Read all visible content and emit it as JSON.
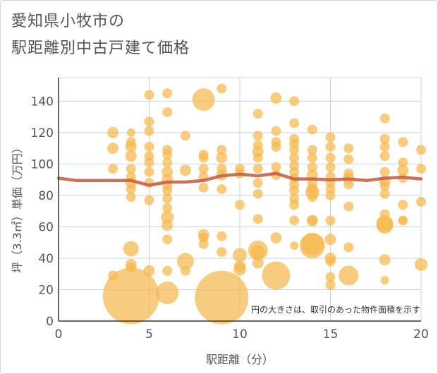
{
  "title_line1": "愛知県小牧市の",
  "title_line2": "駅距離別中古戸建て価格",
  "colors": {
    "bubble": "#f5b94e",
    "line": "#c8604a",
    "grid": "#c9d4e3",
    "text": "#555555"
  },
  "chart_data": {
    "type": "scatter",
    "xlabel": "駅距離（分）",
    "ylabel": "坪（3.3㎡）単価（万円）",
    "annotation": "円の大きさは、取引のあった物件面積を示す",
    "xlim": [
      0,
      20
    ],
    "ylim": [
      0,
      155
    ],
    "xticks": [
      0,
      5,
      10,
      15,
      20
    ],
    "yticks": [
      0,
      20,
      40,
      60,
      80,
      100,
      120,
      140
    ],
    "grid": true,
    "bubbles": [
      {
        "x": 3,
        "y": 120,
        "r": 8
      },
      {
        "x": 3,
        "y": 110,
        "r": 8
      },
      {
        "x": 3,
        "y": 97,
        "r": 7
      },
      {
        "x": 3,
        "y": 29,
        "r": 7
      },
      {
        "x": 4,
        "y": 120,
        "r": 6
      },
      {
        "x": 4,
        "y": 114,
        "r": 7
      },
      {
        "x": 4,
        "y": 111,
        "r": 8
      },
      {
        "x": 4,
        "y": 105,
        "r": 8
      },
      {
        "x": 4,
        "y": 97,
        "r": 7
      },
      {
        "x": 4,
        "y": 92,
        "r": 7
      },
      {
        "x": 4,
        "y": 88,
        "r": 8
      },
      {
        "x": 4,
        "y": 84,
        "r": 7
      },
      {
        "x": 4,
        "y": 79,
        "r": 7
      },
      {
        "x": 4,
        "y": 46,
        "r": 11
      },
      {
        "x": 4,
        "y": 36,
        "r": 8
      },
      {
        "x": 4,
        "y": 34,
        "r": 7
      },
      {
        "x": 4,
        "y": 16,
        "r": 40
      },
      {
        "x": 5,
        "y": 144,
        "r": 7
      },
      {
        "x": 5,
        "y": 127,
        "r": 7
      },
      {
        "x": 5,
        "y": 121,
        "r": 7
      },
      {
        "x": 5,
        "y": 111,
        "r": 7
      },
      {
        "x": 5,
        "y": 105,
        "r": 7
      },
      {
        "x": 5,
        "y": 101,
        "r": 7
      },
      {
        "x": 5,
        "y": 95,
        "r": 7
      },
      {
        "x": 5,
        "y": 88,
        "r": 7
      },
      {
        "x": 5,
        "y": 77,
        "r": 7
      },
      {
        "x": 5,
        "y": 32,
        "r": 8
      },
      {
        "x": 6,
        "y": 145,
        "r": 7
      },
      {
        "x": 6,
        "y": 133,
        "r": 7
      },
      {
        "x": 6,
        "y": 109,
        "r": 7
      },
      {
        "x": 6,
        "y": 106,
        "r": 7
      },
      {
        "x": 6,
        "y": 101,
        "r": 7
      },
      {
        "x": 6,
        "y": 95,
        "r": 8
      },
      {
        "x": 6,
        "y": 90,
        "r": 8
      },
      {
        "x": 6,
        "y": 86,
        "r": 7
      },
      {
        "x": 6,
        "y": 83,
        "r": 7
      },
      {
        "x": 6,
        "y": 78,
        "r": 7
      },
      {
        "x": 6,
        "y": 72,
        "r": 7
      },
      {
        "x": 6,
        "y": 66,
        "r": 9
      },
      {
        "x": 6,
        "y": 61,
        "r": 8
      },
      {
        "x": 6,
        "y": 52,
        "r": 7
      },
      {
        "x": 6,
        "y": 32,
        "r": 7
      },
      {
        "x": 6,
        "y": 18,
        "r": 16
      },
      {
        "x": 7,
        "y": 118,
        "r": 7
      },
      {
        "x": 7,
        "y": 96,
        "r": 8
      },
      {
        "x": 7,
        "y": 38,
        "r": 12
      },
      {
        "x": 7,
        "y": 32,
        "r": 7
      },
      {
        "x": 8,
        "y": 141,
        "r": 16
      },
      {
        "x": 8,
        "y": 106,
        "r": 7
      },
      {
        "x": 8,
        "y": 104,
        "r": 7
      },
      {
        "x": 8,
        "y": 97,
        "r": 7
      },
      {
        "x": 8,
        "y": 92,
        "r": 7
      },
      {
        "x": 8,
        "y": 85,
        "r": 7
      },
      {
        "x": 8,
        "y": 55,
        "r": 8
      },
      {
        "x": 8,
        "y": 53,
        "r": 7
      },
      {
        "x": 8,
        "y": 49,
        "r": 7
      },
      {
        "x": 9,
        "y": 148,
        "r": 7
      },
      {
        "x": 9,
        "y": 109,
        "r": 7
      },
      {
        "x": 9,
        "y": 104,
        "r": 8
      },
      {
        "x": 9,
        "y": 97,
        "r": 7
      },
      {
        "x": 9,
        "y": 93,
        "r": 8
      },
      {
        "x": 9,
        "y": 84,
        "r": 7
      },
      {
        "x": 9,
        "y": 54,
        "r": 7
      },
      {
        "x": 9,
        "y": 44,
        "r": 7
      },
      {
        "x": 9,
        "y": 15,
        "r": 38
      },
      {
        "x": 10,
        "y": 97,
        "r": 7
      },
      {
        "x": 10,
        "y": 94,
        "r": 7
      },
      {
        "x": 10,
        "y": 74,
        "r": 7
      },
      {
        "x": 10,
        "y": 42,
        "r": 10
      },
      {
        "x": 10,
        "y": 35,
        "r": 8
      },
      {
        "x": 10,
        "y": 33,
        "r": 9
      },
      {
        "x": 11,
        "y": 132,
        "r": 7
      },
      {
        "x": 11,
        "y": 118,
        "r": 7
      },
      {
        "x": 11,
        "y": 112,
        "r": 7
      },
      {
        "x": 11,
        "y": 108,
        "r": 8
      },
      {
        "x": 11,
        "y": 104,
        "r": 7
      },
      {
        "x": 11,
        "y": 97,
        "r": 7
      },
      {
        "x": 11,
        "y": 88,
        "r": 7
      },
      {
        "x": 11,
        "y": 81,
        "r": 7
      },
      {
        "x": 11,
        "y": 65,
        "r": 7
      },
      {
        "x": 11,
        "y": 45,
        "r": 14
      },
      {
        "x": 11,
        "y": 44,
        "r": 10
      },
      {
        "x": 11,
        "y": 37,
        "r": 8
      },
      {
        "x": 12,
        "y": 142,
        "r": 8
      },
      {
        "x": 12,
        "y": 121,
        "r": 7
      },
      {
        "x": 12,
        "y": 114,
        "r": 7
      },
      {
        "x": 12,
        "y": 111,
        "r": 7
      },
      {
        "x": 12,
        "y": 98,
        "r": 7
      },
      {
        "x": 12,
        "y": 93,
        "r": 7
      },
      {
        "x": 12,
        "y": 53,
        "r": 8
      },
      {
        "x": 12,
        "y": 29,
        "r": 20
      },
      {
        "x": 13,
        "y": 140,
        "r": 7
      },
      {
        "x": 13,
        "y": 126,
        "r": 7
      },
      {
        "x": 13,
        "y": 116,
        "r": 7
      },
      {
        "x": 13,
        "y": 113,
        "r": 7
      },
      {
        "x": 13,
        "y": 109,
        "r": 7
      },
      {
        "x": 13,
        "y": 104,
        "r": 7
      },
      {
        "x": 13,
        "y": 99,
        "r": 7
      },
      {
        "x": 13,
        "y": 95,
        "r": 7
      },
      {
        "x": 13,
        "y": 91,
        "r": 7
      },
      {
        "x": 13,
        "y": 87,
        "r": 7
      },
      {
        "x": 13,
        "y": 83,
        "r": 7
      },
      {
        "x": 13,
        "y": 78,
        "r": 7
      },
      {
        "x": 13,
        "y": 74,
        "r": 7
      },
      {
        "x": 13,
        "y": 64,
        "r": 7
      },
      {
        "x": 13,
        "y": 48,
        "r": 6
      },
      {
        "x": 14,
        "y": 122,
        "r": 7
      },
      {
        "x": 14,
        "y": 109,
        "r": 7
      },
      {
        "x": 14,
        "y": 104,
        "r": 7
      },
      {
        "x": 14,
        "y": 98,
        "r": 7
      },
      {
        "x": 14,
        "y": 93,
        "r": 8
      },
      {
        "x": 14,
        "y": 88,
        "r": 7
      },
      {
        "x": 14,
        "y": 84,
        "r": 8
      },
      {
        "x": 14,
        "y": 82,
        "r": 10
      },
      {
        "x": 14,
        "y": 79,
        "r": 7
      },
      {
        "x": 14,
        "y": 64,
        "r": 7
      },
      {
        "x": 14,
        "y": 64,
        "r": 8
      },
      {
        "x": 14,
        "y": 49,
        "r": 16
      },
      {
        "x": 14,
        "y": 48,
        "r": 18
      },
      {
        "x": 15,
        "y": 117,
        "r": 7
      },
      {
        "x": 15,
        "y": 111,
        "r": 7
      },
      {
        "x": 15,
        "y": 104,
        "r": 7
      },
      {
        "x": 15,
        "y": 98,
        "r": 7
      },
      {
        "x": 15,
        "y": 92,
        "r": 7
      },
      {
        "x": 15,
        "y": 88,
        "r": 7
      },
      {
        "x": 15,
        "y": 84,
        "r": 7
      },
      {
        "x": 15,
        "y": 80,
        "r": 7
      },
      {
        "x": 15,
        "y": 64,
        "r": 7
      },
      {
        "x": 15,
        "y": 52,
        "r": 8
      },
      {
        "x": 15,
        "y": 40,
        "r": 8
      },
      {
        "x": 15,
        "y": 38,
        "r": 7
      },
      {
        "x": 15,
        "y": 28,
        "r": 7
      },
      {
        "x": 15,
        "y": 23,
        "r": 7
      },
      {
        "x": 16,
        "y": 110,
        "r": 7
      },
      {
        "x": 16,
        "y": 103,
        "r": 7
      },
      {
        "x": 16,
        "y": 94,
        "r": 7
      },
      {
        "x": 16,
        "y": 91,
        "r": 8
      },
      {
        "x": 16,
        "y": 87,
        "r": 7
      },
      {
        "x": 16,
        "y": 73,
        "r": 7
      },
      {
        "x": 16,
        "y": 47,
        "r": 7
      },
      {
        "x": 16,
        "y": 29,
        "r": 14
      },
      {
        "x": 18,
        "y": 129,
        "r": 7
      },
      {
        "x": 18,
        "y": 116,
        "r": 7
      },
      {
        "x": 18,
        "y": 111,
        "r": 7
      },
      {
        "x": 18,
        "y": 105,
        "r": 7
      },
      {
        "x": 18,
        "y": 95,
        "r": 7
      },
      {
        "x": 18,
        "y": 89,
        "r": 8
      },
      {
        "x": 18,
        "y": 86,
        "r": 7
      },
      {
        "x": 18,
        "y": 81,
        "r": 7
      },
      {
        "x": 18,
        "y": 68,
        "r": 7
      },
      {
        "x": 18,
        "y": 62,
        "r": 12
      },
      {
        "x": 18,
        "y": 61,
        "r": 12
      },
      {
        "x": 18,
        "y": 39,
        "r": 8
      },
      {
        "x": 18,
        "y": 26,
        "r": 6
      },
      {
        "x": 19,
        "y": 114,
        "r": 7
      },
      {
        "x": 19,
        "y": 101,
        "r": 7
      },
      {
        "x": 19,
        "y": 96,
        "r": 8
      },
      {
        "x": 19,
        "y": 91,
        "r": 7
      },
      {
        "x": 19,
        "y": 74,
        "r": 7
      },
      {
        "x": 19,
        "y": 64,
        "r": 7
      },
      {
        "x": 19,
        "y": 64,
        "r": 6
      },
      {
        "x": 20,
        "y": 109,
        "r": 7
      },
      {
        "x": 20,
        "y": 97,
        "r": 7
      },
      {
        "x": 20,
        "y": 76,
        "r": 7
      },
      {
        "x": 20,
        "y": 36,
        "r": 9
      }
    ],
    "line": {
      "x": [
        0,
        1,
        2,
        3,
        4,
        5,
        6,
        7,
        8,
        9,
        10,
        11,
        12,
        13,
        14,
        15,
        16,
        17,
        18,
        19,
        20
      ],
      "y": [
        91,
        89.5,
        89.5,
        89.5,
        89.5,
        86.5,
        88.5,
        88.5,
        89.5,
        92.5,
        93.5,
        92.5,
        94,
        90.5,
        90.5,
        90,
        90.5,
        89.5,
        91,
        91.5,
        90.5
      ]
    }
  }
}
